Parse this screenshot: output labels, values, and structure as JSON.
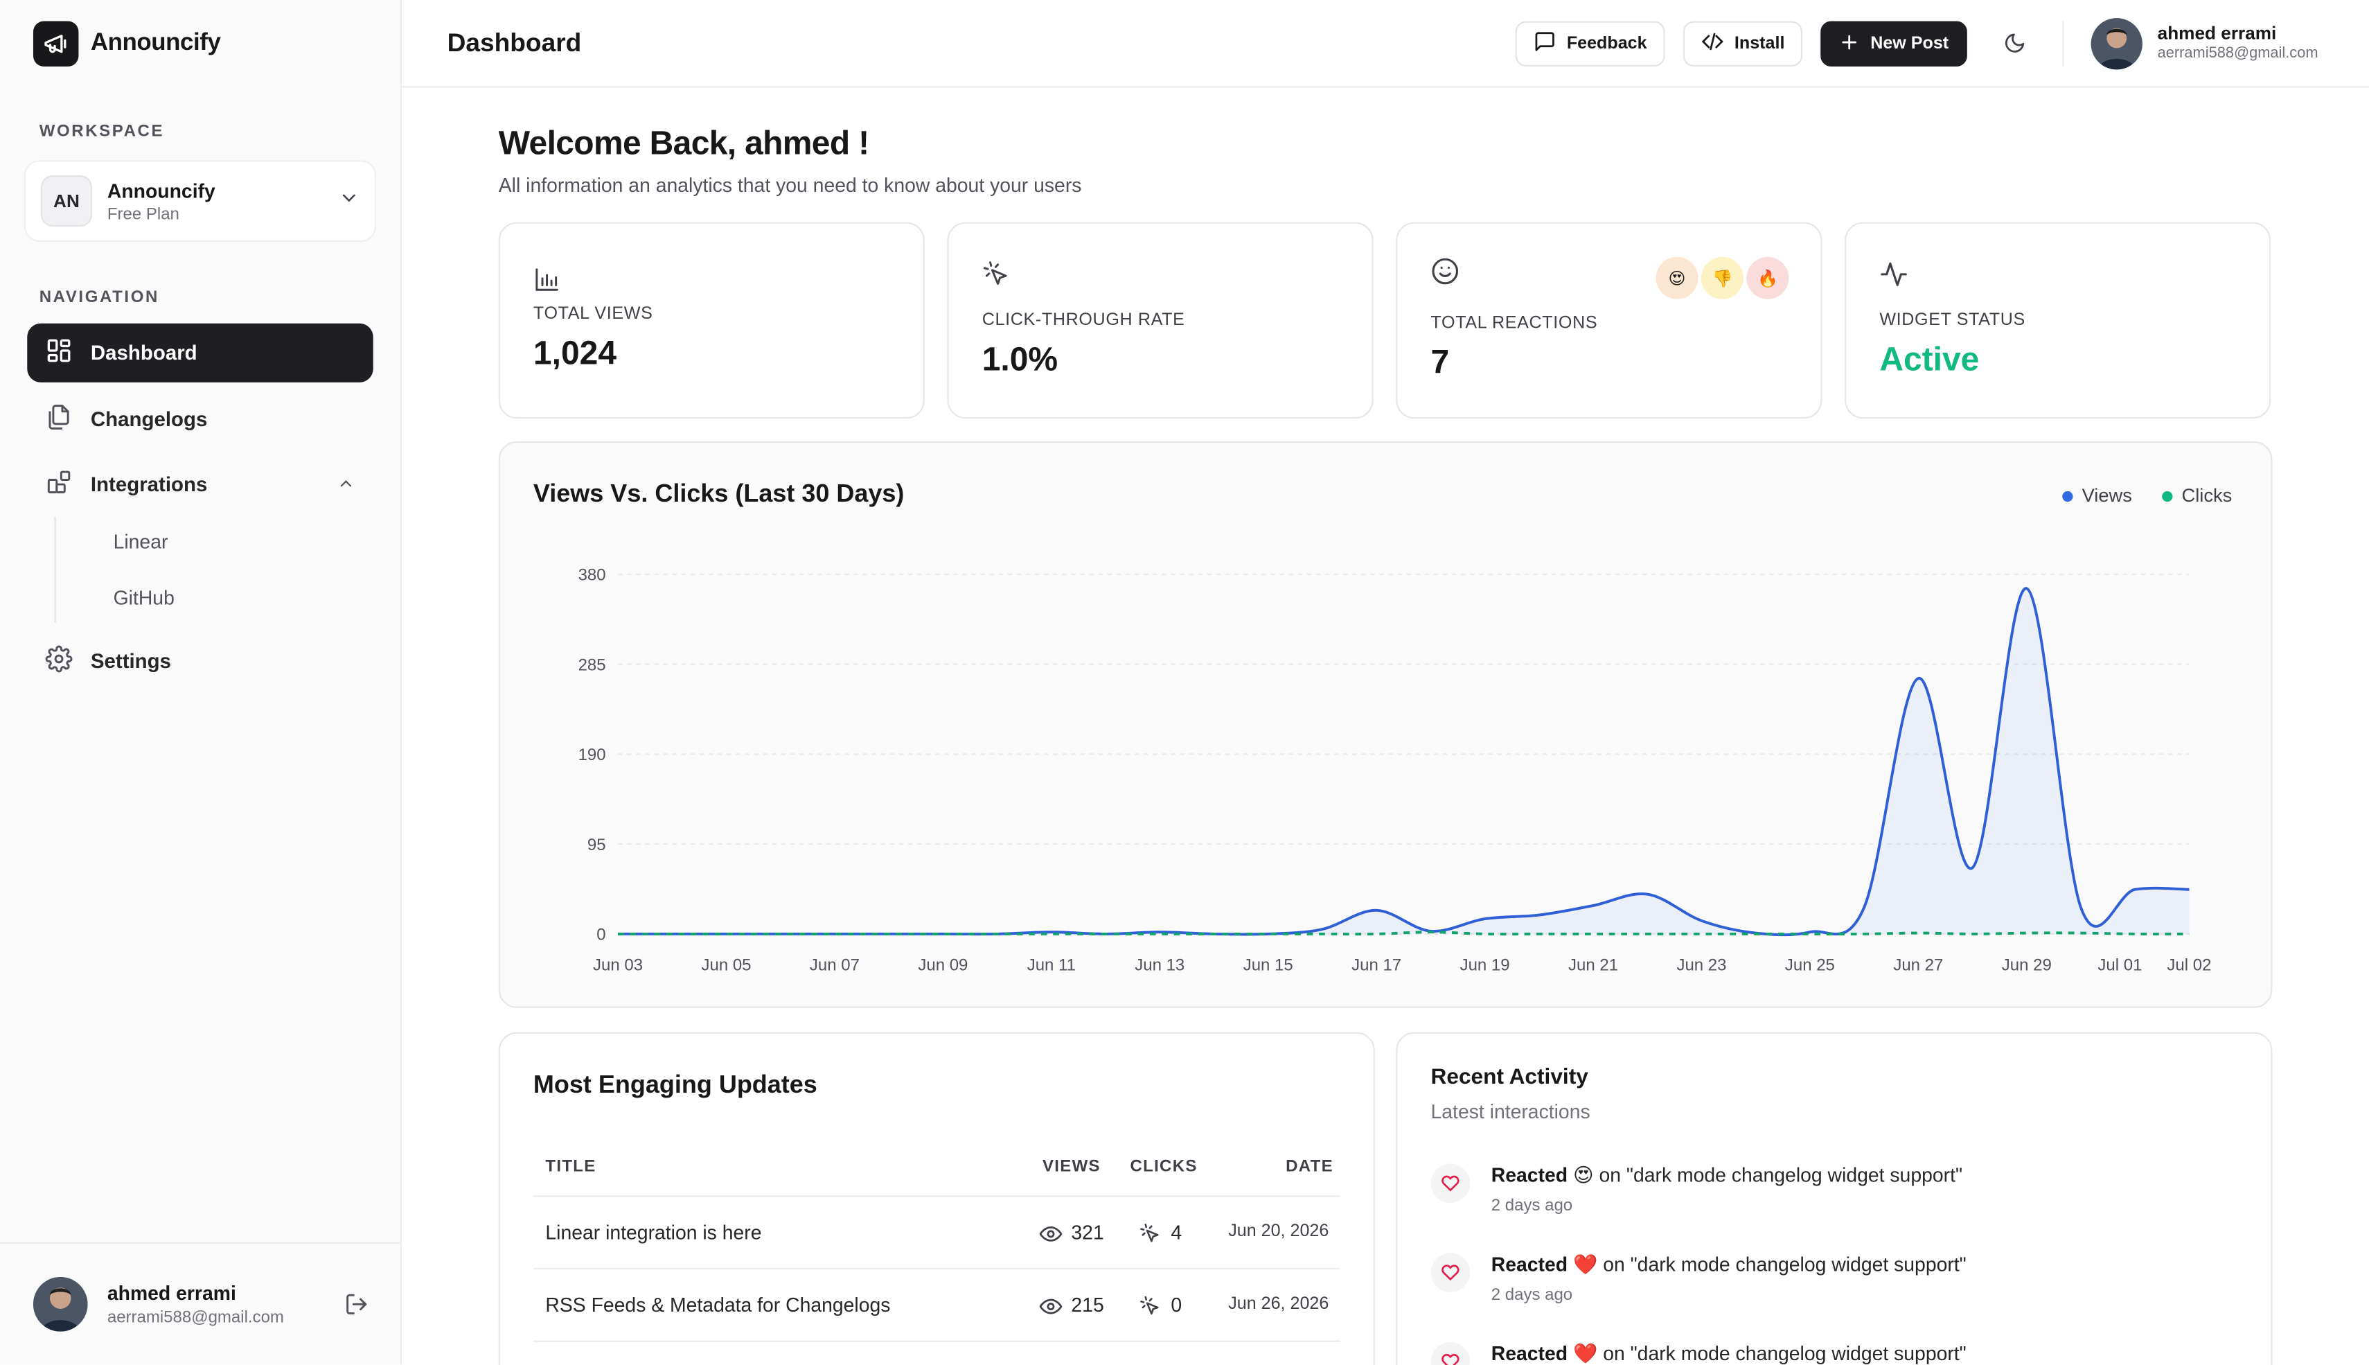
{
  "app": {
    "name": "Announcify"
  },
  "sidebar": {
    "workspace_label": "WORKSPACE",
    "workspace": {
      "initials": "AN",
      "name": "Announcify",
      "plan": "Free Plan"
    },
    "navigation_label": "NAVIGATION",
    "items": [
      {
        "label": "Dashboard",
        "icon": "grid-icon",
        "active": true
      },
      {
        "label": "Changelogs",
        "icon": "files-icon"
      },
      {
        "label": "Integrations",
        "icon": "blocks-icon",
        "expanded": true
      },
      {
        "label": "Settings",
        "icon": "gear-icon"
      }
    ],
    "sub_items": [
      {
        "label": "Linear"
      },
      {
        "label": "GitHub"
      }
    ],
    "footer": {
      "name": "ahmed errami",
      "email": "aerrami588@gmail.com"
    }
  },
  "header": {
    "title": "Dashboard",
    "feedback_label": "Feedback",
    "install_label": "Install",
    "new_post_label": "New Post",
    "user": {
      "name": "ahmed errami",
      "email": "aerrami588@gmail.com"
    }
  },
  "welcome": {
    "title": "Welcome Back, ahmed !",
    "subtitle": "All information an analytics that you need to know about your users"
  },
  "stats": {
    "views": {
      "label": "TOTAL VIEWS",
      "value": "1,024"
    },
    "ctr": {
      "label": "CLICK-THROUGH RATE",
      "value": "1.0%"
    },
    "reactions": {
      "label": "TOTAL REACTIONS",
      "value": "7",
      "emojis": [
        "😍",
        "👎",
        "🔥"
      ]
    },
    "widget": {
      "label": "WIDGET STATUS",
      "value": "Active"
    }
  },
  "chart_data": {
    "type": "line",
    "title": "Views Vs. Clicks (Last 30 Days)",
    "x": [
      "Jun 03",
      "Jun 04",
      "Jun 05",
      "Jun 06",
      "Jun 07",
      "Jun 08",
      "Jun 09",
      "Jun 10",
      "Jun 11",
      "Jun 12",
      "Jun 13",
      "Jun 14",
      "Jun 15",
      "Jun 16",
      "Jun 17",
      "Jun 18",
      "Jun 19",
      "Jun 20",
      "Jun 21",
      "Jun 22",
      "Jun 23",
      "Jun 24",
      "Jun 25",
      "Jun 26",
      "Jun 27",
      "Jun 28",
      "Jun 29",
      "Jun 30",
      "Jul 01",
      "Jul 02"
    ],
    "x_tick_labels": [
      "Jun 03",
      "Jun 05",
      "Jun 07",
      "Jun 09",
      "Jun 11",
      "Jun 13",
      "Jun 15",
      "Jun 17",
      "Jun 19",
      "Jun 21",
      "Jun 23",
      "Jun 25",
      "Jun 27",
      "Jun 29",
      "Jul 01",
      "Jul 02"
    ],
    "series": [
      {
        "name": "Views",
        "color": "#2f5fd7",
        "values": [
          0,
          0,
          0,
          0,
          0,
          0,
          0,
          0,
          2,
          0,
          2,
          0,
          0,
          5,
          25,
          3,
          16,
          20,
          30,
          42,
          14,
          1,
          2,
          28,
          270,
          70,
          365,
          28,
          47,
          47
        ]
      },
      {
        "name": "Clicks",
        "color": "#10a36b",
        "values": [
          0,
          0,
          0,
          0,
          0,
          0,
          0,
          0,
          0,
          0,
          0,
          0,
          0,
          0,
          0,
          2,
          0,
          0,
          0,
          0,
          0,
          0,
          0,
          0,
          1,
          0,
          1,
          1,
          0,
          0
        ]
      }
    ],
    "ylim": [
      0,
      380
    ],
    "yticks": [
      0,
      95,
      190,
      285,
      380
    ],
    "legend": "top-right",
    "grid": true
  },
  "table": {
    "title": "Most Engaging Updates",
    "columns": [
      "TITLE",
      "VIEWS",
      "CLICKS",
      "DATE"
    ],
    "rows": [
      {
        "title": "Linear integration is here",
        "views": "321",
        "clicks": "4",
        "date": "Jun 20, 2026"
      },
      {
        "title": "RSS Feeds & Metadata for Changelogs",
        "views": "215",
        "clicks": "0",
        "date": "Jun 26, 2026"
      }
    ]
  },
  "activity": {
    "title": "Recent Activity",
    "subtitle": "Latest interactions",
    "items": [
      {
        "verb": "Reacted",
        "emoji": "😍",
        "target": "on \"dark mode changelog widget support\"",
        "time": "2 days ago"
      },
      {
        "verb": "Reacted",
        "emoji": "❤️",
        "target": "on \"dark mode changelog widget support\"",
        "time": "2 days ago"
      },
      {
        "verb": "Reacted",
        "emoji": "❤️",
        "target": "on \"dark mode changelog widget support\"",
        "time": ""
      }
    ]
  },
  "colors": {
    "accent": "#1f1f23",
    "views": "#2f5fd7",
    "clicks": "#10a36b",
    "active": "#10b981"
  }
}
